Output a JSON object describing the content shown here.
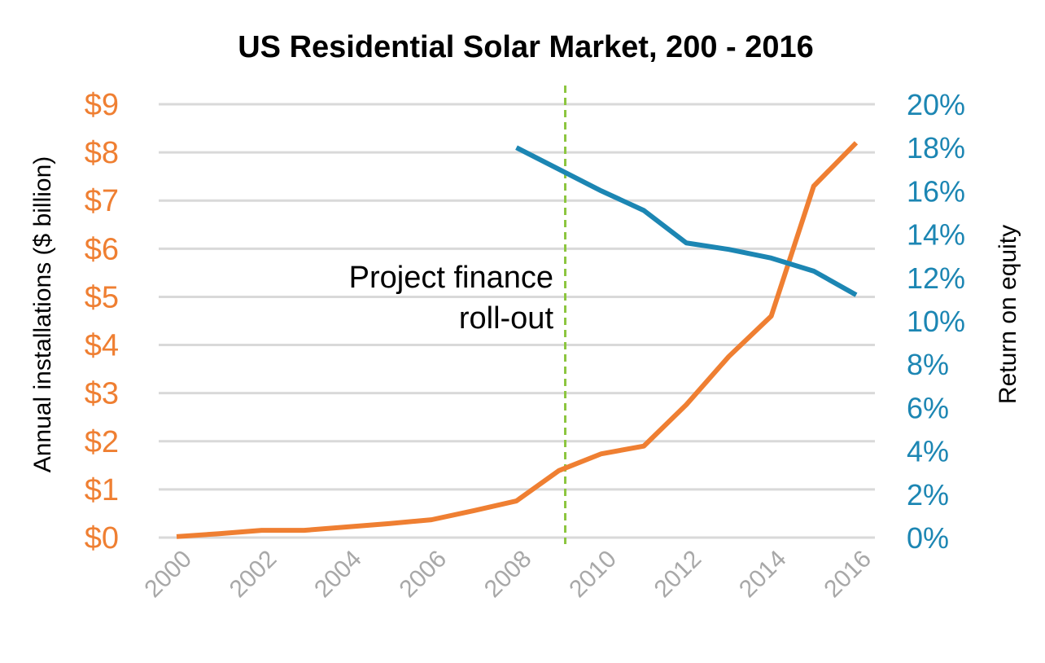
{
  "chart_data": {
    "type": "line",
    "title": "US Residential Solar Market, 200 - 2016",
    "xlabel": "",
    "ylabel": "Annual installations ($ billion)",
    "y2label": "Return on equity",
    "x": [
      2000,
      2001,
      2002,
      2003,
      2004,
      2005,
      2006,
      2007,
      2008,
      2009,
      2010,
      2011,
      2012,
      2013,
      2014,
      2015,
      2016
    ],
    "x_tick_labels": [
      "2000",
      "2002",
      "2004",
      "2006",
      "2008",
      "2010",
      "2012",
      "2014",
      "2016"
    ],
    "x_tick_values": [
      2000,
      2002,
      2004,
      2006,
      2008,
      2010,
      2012,
      2014,
      2016
    ],
    "ylim": [
      0,
      9
    ],
    "y_tick_labels": [
      "$0",
      "$1",
      "$2",
      "$3",
      "$4",
      "$5",
      "$6",
      "$7",
      "$8",
      "$9"
    ],
    "y2lim": [
      0,
      20
    ],
    "y2_tick_labels": [
      "0%",
      "2%",
      "4%",
      "6%",
      "8%",
      "10%",
      "12%",
      "14%",
      "16%",
      "18%",
      "20%"
    ],
    "grid": true,
    "series": [
      {
        "name": "Annual installations",
        "axis": "left",
        "color": "#ef7f32",
        "x": [
          2000,
          2001,
          2002,
          2003,
          2004,
          2005,
          2006,
          2007,
          2008,
          2009,
          2010,
          2011,
          2012,
          2013,
          2014,
          2015,
          2016
        ],
        "values": [
          0.02,
          0.08,
          0.15,
          0.15,
          0.22,
          0.29,
          0.37,
          0.56,
          0.76,
          1.39,
          1.74,
          1.9,
          2.76,
          3.76,
          4.6,
          7.3,
          8.2
        ]
      },
      {
        "name": "Return on equity",
        "axis": "right",
        "color": "#1c86b3",
        "x": [
          2008,
          2009,
          2010,
          2011,
          2012,
          2013,
          2014,
          2015,
          2016
        ],
        "values": [
          18.0,
          17.0,
          16.0,
          15.1,
          13.6,
          13.3,
          12.9,
          12.3,
          11.2
        ]
      }
    ],
    "annotations": [
      {
        "type": "vline",
        "x": 2009.15,
        "color": "#8cc63f",
        "style": "dashed",
        "lines": [
          "Project finance",
          "roll-out"
        ]
      }
    ]
  }
}
